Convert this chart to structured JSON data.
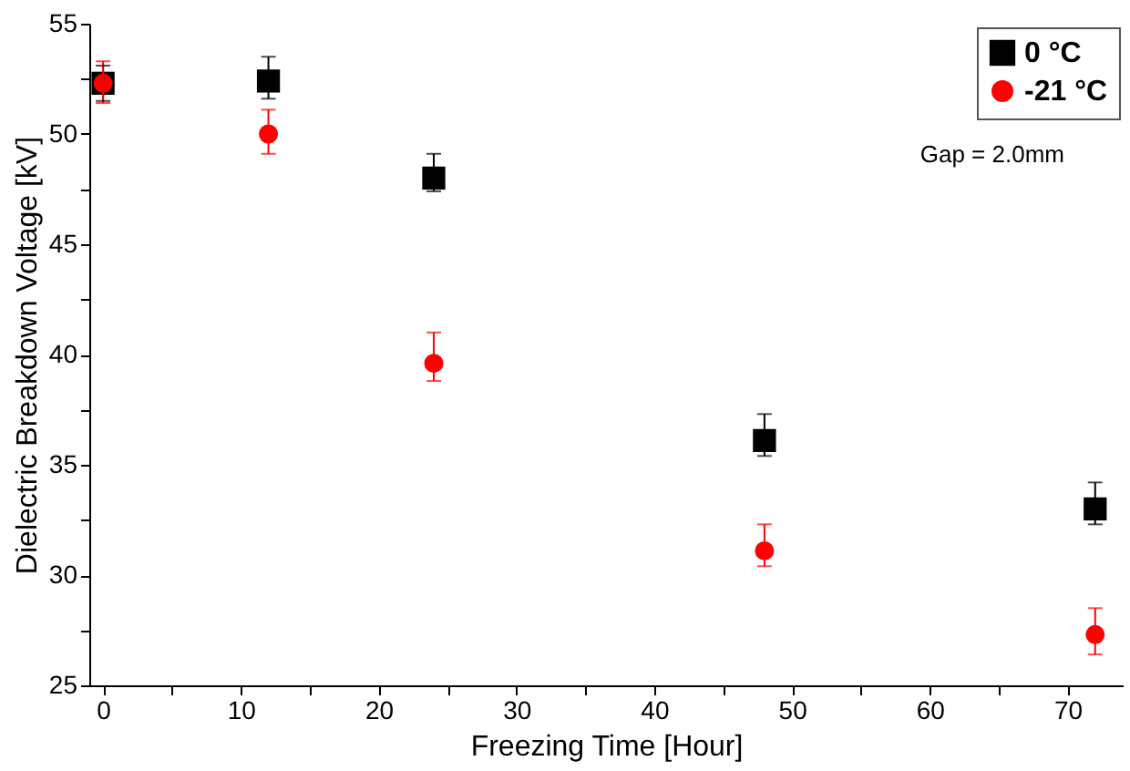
{
  "chart_data": {
    "type": "scatter",
    "xlabel": "Freezing Time [Hour]",
    "ylabel": "Dielectric Breakdown Voltage [kV]",
    "xlim": [
      -1,
      74
    ],
    "ylim": [
      25,
      55
    ],
    "xticks": [
      0,
      {
        "value": 5,
        "label": null
      },
      10,
      {
        "value": 15,
        "label": null
      },
      20,
      {
        "value": 25,
        "label": null
      },
      30,
      {
        "value": 35,
        "label": null
      },
      40,
      {
        "value": 45,
        "label": null
      },
      50,
      {
        "value": 55,
        "label": null
      },
      60,
      {
        "value": 65,
        "label": null
      },
      70
    ],
    "yticks": [
      25,
      {
        "value": 27.5,
        "label": null
      },
      30,
      {
        "value": 32.5,
        "label": null
      },
      35,
      {
        "value": 37.5,
        "label": null
      },
      40,
      {
        "value": 42.5,
        "label": null
      },
      45,
      {
        "value": 47.5,
        "label": null
      },
      50,
      {
        "value": 52.5,
        "label": null
      },
      55
    ],
    "x": [
      0,
      12,
      24,
      48,
      72
    ],
    "series": [
      {
        "name": "0 °C",
        "color": "#000000",
        "marker": "square",
        "values": [
          52.3,
          52.4,
          48.0,
          36.1,
          33.0
        ],
        "errors": [
          [
            51.5,
            53.1
          ],
          [
            51.6,
            53.5
          ],
          [
            47.4,
            49.1
          ],
          [
            35.4,
            37.3
          ],
          [
            32.3,
            34.2
          ]
        ]
      },
      {
        "name": "-21 °C",
        "color": "#ff0000",
        "marker": "circle",
        "values": [
          52.3,
          50.0,
          39.6,
          31.1,
          27.3
        ],
        "errors": [
          [
            51.4,
            53.3
          ],
          [
            49.1,
            51.1
          ],
          [
            38.8,
            41.0
          ],
          [
            30.4,
            32.3
          ],
          [
            26.4,
            28.5
          ]
        ]
      }
    ],
    "annotations": [
      "Gap = 2.0mm"
    ],
    "legend": "top right",
    "grid": false
  }
}
